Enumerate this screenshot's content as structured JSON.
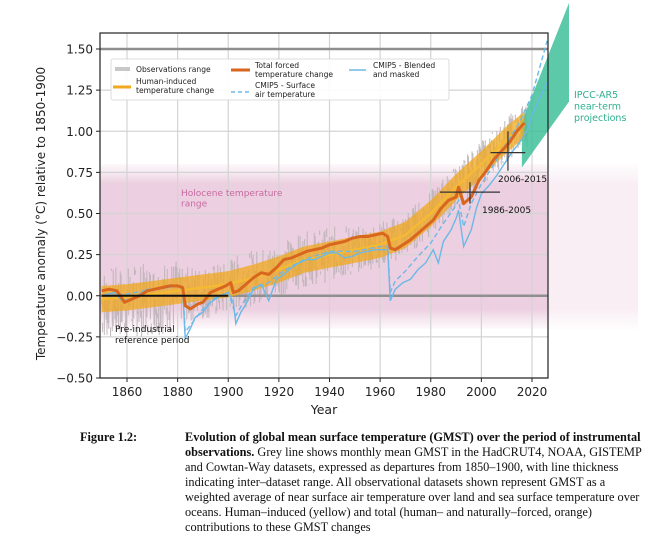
{
  "chart_data": {
    "type": "line",
    "xlabel": "Year",
    "ylabel": "Temperature anomaly (°C) relative to 1850-1900",
    "xlim": [
      1850,
      2027
    ],
    "ylim": [
      -0.5,
      1.6
    ],
    "xticks": [
      1860,
      1880,
      1900,
      1920,
      1940,
      1960,
      1980,
      2000,
      2020
    ],
    "yticks": [
      -0.5,
      -0.25,
      0.0,
      0.25,
      0.5,
      0.75,
      1.0,
      1.25,
      1.5
    ],
    "ytick_labels": [
      "−0.50",
      "−0.25",
      "0.00",
      "0.25",
      "0.50",
      "0.75",
      "1.00",
      "1.25",
      "1.50"
    ],
    "grid": true,
    "legend": {
      "placement": "top-left",
      "entries": [
        {
          "label": "Observations range",
          "style": "grey-band",
          "color": "#c8c8c8"
        },
        {
          "label": "Human-induced temperature change",
          "lines": [
            "Human-induced",
            "temperature change"
          ],
          "style": "line",
          "color": "#f0a81e"
        },
        {
          "label": "Total forced temperature change",
          "lines": [
            "Total forced",
            "temperature change"
          ],
          "style": "line",
          "color": "#d9661f"
        },
        {
          "label": "CMIP5 - Surface air temperature",
          "lines": [
            "CMIP5 - Surface",
            "air temperature"
          ],
          "style": "dashed",
          "color": "#6cb8e6"
        },
        {
          "label": "CMIP5 - Blended and masked",
          "lines": [
            "CMIP5 - Blended",
            "and masked"
          ],
          "style": "line",
          "color": "#6cb8e6"
        }
      ]
    },
    "holocene_range": {
      "label_lines": [
        "Holocene temperature",
        "range"
      ],
      "ymin": -0.2,
      "ymax": 0.8,
      "color": "#eccfe0",
      "label_color": "#c76aa0"
    },
    "reference_lines": {
      "y_0": 0.0,
      "y_1_5": 1.5
    },
    "annotations": [
      {
        "text_lines": [
          "Pre-industrial",
          "reference period"
        ],
        "x_start": 1850,
        "x_end": 1900,
        "y": 0.0
      },
      {
        "text": "1986-2005",
        "x_center": 1995.5,
        "y": 0.63,
        "x_range": [
          1986,
          2005
        ],
        "y_err": [
          0.56,
          0.69
        ]
      },
      {
        "text": "2006-2015",
        "x_center": 2010.5,
        "y": 0.87,
        "x_range": [
          2006,
          2015
        ],
        "y_err": [
          0.76,
          1.0
        ]
      }
    ],
    "projection": {
      "label_lines": [
        "IPCC-AR5",
        "near-term",
        "projections"
      ],
      "color": "#3fbf9a",
      "x_start": 2016,
      "x_end": 2035,
      "start_range": [
        0.78,
        1.06
      ],
      "end_range": [
        1.15,
        1.78
      ]
    },
    "series": [
      {
        "name": "Human-induced temperature change",
        "color": "#f0a81e",
        "x": [
          1850,
          1860,
          1870,
          1880,
          1890,
          1900,
          1910,
          1920,
          1930,
          1940,
          1950,
          1960,
          1970,
          1980,
          1990,
          2000,
          2010,
          2017
        ],
        "values": [
          -0.02,
          -0.01,
          0.01,
          0.03,
          0.05,
          0.07,
          0.11,
          0.16,
          0.22,
          0.25,
          0.28,
          0.31,
          0.37,
          0.5,
          0.66,
          0.8,
          0.95,
          1.04
        ],
        "band": 0.08
      },
      {
        "name": "Total forced temperature change",
        "color": "#d9661f",
        "x": [
          1850,
          1853,
          1856,
          1859,
          1862,
          1865,
          1868,
          1871,
          1874,
          1877,
          1880,
          1882,
          1883,
          1885,
          1888,
          1890,
          1893,
          1896,
          1899,
          1901,
          1902,
          1904,
          1907,
          1910,
          1913,
          1916,
          1919,
          1922,
          1925,
          1928,
          1931,
          1934,
          1937,
          1940,
          1943,
          1946,
          1949,
          1952,
          1955,
          1958,
          1961,
          1963,
          1964,
          1966,
          1969,
          1972,
          1975,
          1978,
          1981,
          1984,
          1987,
          1990,
          1991,
          1993,
          1996,
          1999,
          2002,
          2005,
          2008,
          2011,
          2014,
          2017
        ],
        "values": [
          0.03,
          0.04,
          0.03,
          -0.04,
          -0.02,
          0.0,
          0.03,
          0.04,
          0.05,
          0.06,
          0.06,
          0.05,
          -0.06,
          -0.08,
          -0.05,
          -0.04,
          0.02,
          0.04,
          0.06,
          0.08,
          0.02,
          0.03,
          0.07,
          0.11,
          0.14,
          0.13,
          0.17,
          0.22,
          0.23,
          0.25,
          0.27,
          0.28,
          0.29,
          0.31,
          0.32,
          0.33,
          0.35,
          0.36,
          0.36,
          0.37,
          0.38,
          0.36,
          0.29,
          0.28,
          0.31,
          0.34,
          0.38,
          0.42,
          0.46,
          0.53,
          0.58,
          0.6,
          0.66,
          0.56,
          0.6,
          0.7,
          0.76,
          0.83,
          0.88,
          0.93,
          1.0,
          1.05
        ]
      },
      {
        "name": "CMIP5 - Blended and masked",
        "color": "#6cb8e6",
        "x": [
          1850,
          1855,
          1858,
          1862,
          1865,
          1868,
          1872,
          1876,
          1880,
          1882,
          1883,
          1885,
          1887,
          1890,
          1893,
          1897,
          1900,
          1902,
          1903,
          1905,
          1907,
          1910,
          1913,
          1916,
          1919,
          1922,
          1925,
          1928,
          1931,
          1934,
          1937,
          1940,
          1943,
          1946,
          1949,
          1952,
          1955,
          1958,
          1961,
          1963,
          1964,
          1966,
          1969,
          1972,
          1975,
          1978,
          1981,
          1983,
          1985,
          1988,
          1990,
          1991,
          1993,
          1996,
          1998,
          2000,
          2003,
          2006,
          2009,
          2012,
          2015,
          2018,
          2020,
          2023,
          2026
        ],
        "values": [
          0.0,
          0.02,
          -0.03,
          -0.02,
          0.01,
          0.04,
          0.04,
          0.05,
          0.06,
          0.04,
          -0.26,
          -0.2,
          -0.13,
          -0.1,
          -0.04,
          0.0,
          0.02,
          -0.04,
          -0.17,
          -0.1,
          -0.05,
          0.04,
          0.07,
          -0.03,
          0.1,
          0.13,
          0.17,
          0.2,
          0.22,
          0.22,
          0.24,
          0.26,
          0.26,
          0.23,
          0.24,
          0.26,
          0.27,
          0.28,
          0.28,
          0.28,
          -0.03,
          0.04,
          0.08,
          0.1,
          0.16,
          0.2,
          0.28,
          0.2,
          0.33,
          0.4,
          0.47,
          0.52,
          0.3,
          0.4,
          0.53,
          0.62,
          0.67,
          0.73,
          0.8,
          0.87,
          0.93,
          1.0,
          1.1,
          1.2,
          1.3
        ]
      },
      {
        "name": "CMIP5 - Surface air temperature",
        "color": "#6cb8e6",
        "dashed": true,
        "x": [
          1850,
          1860,
          1870,
          1880,
          1882,
          1883,
          1886,
          1890,
          1895,
          1900,
          1903,
          1906,
          1910,
          1915,
          1920,
          1925,
          1930,
          1940,
          1950,
          1960,
          1963,
          1964,
          1966,
          1970,
          1975,
          1980,
          1985,
          1990,
          1991,
          1993,
          1996,
          2000,
          2005,
          2010,
          2015,
          2020,
          2026
        ],
        "values": [
          0.0,
          0.01,
          0.04,
          0.06,
          0.04,
          -0.22,
          -0.16,
          -0.08,
          -0.01,
          0.02,
          -0.12,
          -0.04,
          0.05,
          0.07,
          0.13,
          0.18,
          0.22,
          0.27,
          0.27,
          0.3,
          0.3,
          0.02,
          0.09,
          0.15,
          0.24,
          0.32,
          0.44,
          0.55,
          0.58,
          0.42,
          0.56,
          0.68,
          0.8,
          0.93,
          1.05,
          1.22,
          1.55
        ]
      }
    ]
  },
  "caption": {
    "figure_label": "Figure 1.2:",
    "title": "Evolution of global mean surface temperature (GMST) over the period of instrumental observations.",
    "body": " Grey line shows monthly mean GMST in the HadCRUT4, NOAA, GISTEMP and Cowtan-Way datasets, expressed as departures from 1850–1900, with line thickness indicating inter–dataset range. All observational datasets shown represent GMST as a weighted average of near surface air temperature over land and sea surface temperature over oceans. Human–induced (yellow) and total (human– and naturally–forced, orange) contributions to these GMST changes"
  }
}
